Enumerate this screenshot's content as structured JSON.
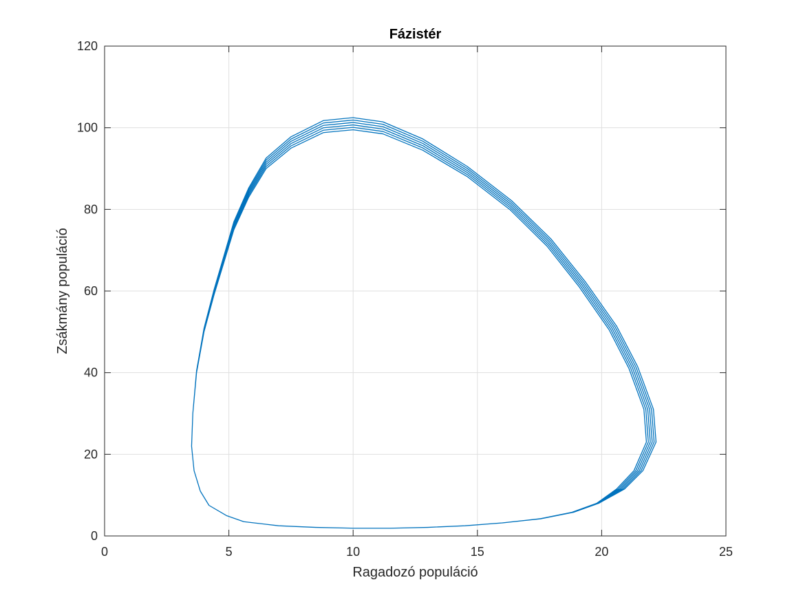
{
  "chart_data": {
    "type": "line",
    "title": "Fázistér",
    "xlabel": "Ragadozó populáció",
    "ylabel": "Zsákmány populáció",
    "xlim": [
      0,
      25
    ],
    "ylim": [
      0,
      120
    ],
    "xticks": [
      0,
      5,
      10,
      15,
      20,
      25
    ],
    "yticks": [
      0,
      20,
      40,
      60,
      80,
      100,
      120
    ],
    "xtick_labels": [
      "0",
      "5",
      "10",
      "15",
      "20",
      "25"
    ],
    "ytick_labels": [
      "0",
      "20",
      "40",
      "60",
      "80",
      "100",
      "120"
    ],
    "grid": true,
    "line_color": "#0072BD",
    "series": [
      {
        "name": "",
        "cycles": 6,
        "cycle_shape": [
          [
            4.2,
            7.5
          ],
          [
            4.9,
            5.0
          ],
          [
            5.6,
            3.5
          ],
          [
            7.0,
            2.5
          ],
          [
            8.5,
            2.1
          ],
          [
            10.0,
            1.9
          ],
          [
            11.5,
            1.9
          ],
          [
            13.0,
            2.1
          ],
          [
            14.5,
            2.5
          ],
          [
            16.0,
            3.2
          ],
          [
            17.5,
            4.2
          ],
          [
            18.8,
            5.8
          ],
          [
            19.8,
            8.0
          ],
          [
            20.6,
            11.5
          ],
          [
            21.3,
            16.0
          ],
          [
            21.8,
            23.0
          ],
          [
            21.7,
            31.0
          ],
          [
            21.1,
            41.0
          ],
          [
            20.3,
            50.5
          ],
          [
            19.1,
            61.0
          ],
          [
            17.8,
            71.0
          ],
          [
            16.3,
            80.0
          ],
          [
            14.6,
            88.0
          ],
          [
            12.8,
            94.5
          ],
          [
            11.2,
            98.5
          ],
          [
            10.0,
            99.5
          ],
          [
            8.8,
            98.8
          ],
          [
            7.5,
            95.0
          ],
          [
            6.5,
            90.0
          ],
          [
            5.8,
            83.0
          ],
          [
            5.2,
            75.0
          ],
          [
            4.8,
            67.0
          ],
          [
            4.4,
            59.0
          ],
          [
            4.0,
            50.0
          ],
          [
            3.7,
            40.0
          ],
          [
            3.55,
            30.0
          ],
          [
            3.5,
            22.0
          ],
          [
            3.6,
            16.0
          ],
          [
            3.85,
            11.0
          ]
        ],
        "cycle_growth_at_peak": 0.6,
        "cycle_growth_at_right": 0.08
      }
    ]
  }
}
